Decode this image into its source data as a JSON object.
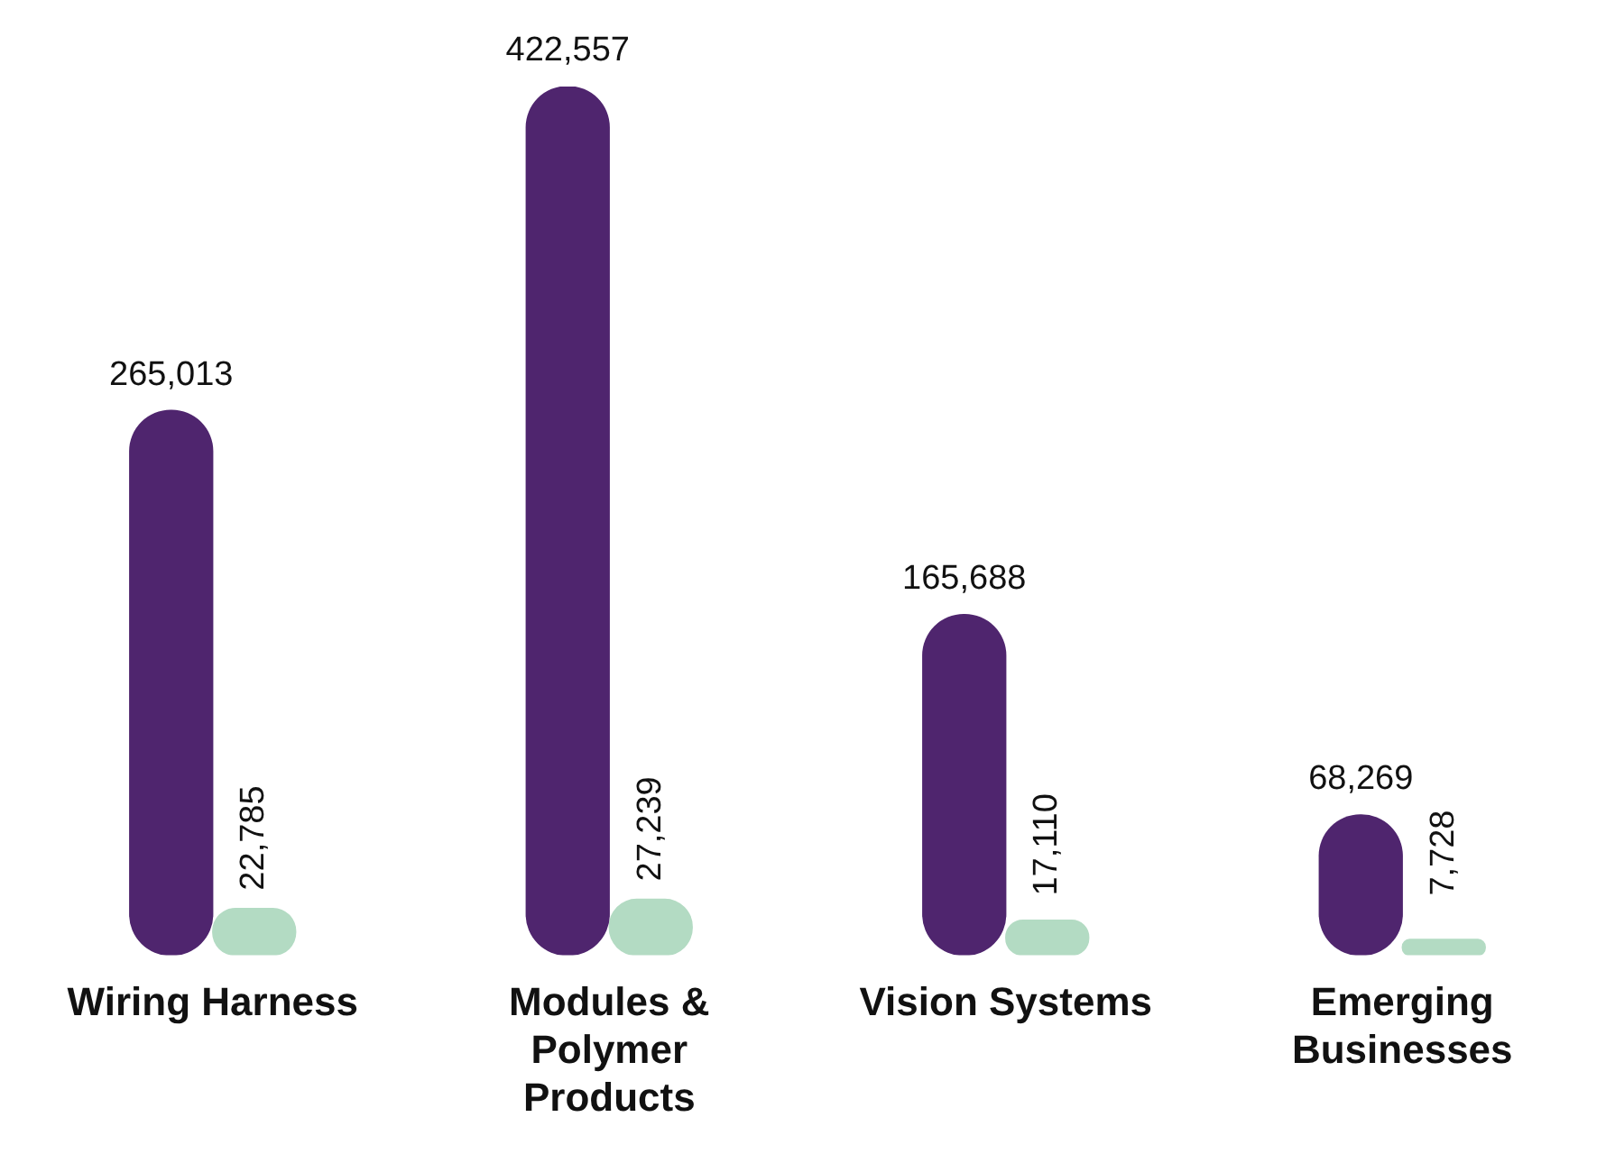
{
  "chart_data": {
    "type": "bar",
    "categories": [
      "Wiring Harness",
      "Modules & Polymer Products",
      "Vision Systems",
      "Emerging Businesses"
    ],
    "series": [
      {
        "color": "#4f256e",
        "values": [
          265013,
          422557,
          165688,
          68269
        ],
        "value_labels": [
          "265,013",
          "422,557",
          "165,688",
          "68,269"
        ]
      },
      {
        "color": "#b3dbc3",
        "values": [
          22785,
          27239,
          17110,
          7728
        ],
        "value_labels": [
          "22,785",
          "27,239",
          "17,110",
          "7,728"
        ]
      }
    ],
    "grid": false,
    "legend": false
  }
}
